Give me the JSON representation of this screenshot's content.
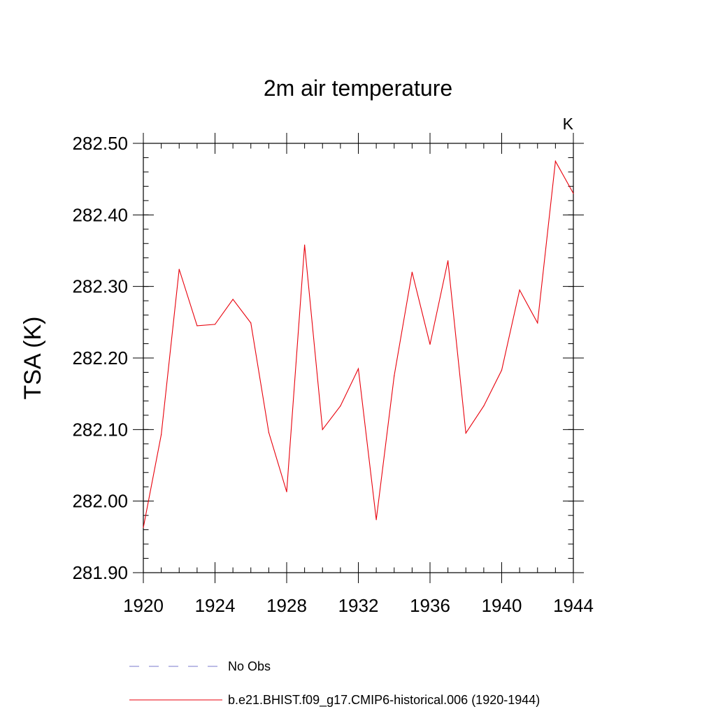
{
  "chart_data": {
    "type": "line",
    "title": "2m air temperature",
    "units_label": "K",
    "xlabel": "",
    "ylabel": "TSA  (K)",
    "xlim": [
      1920,
      1944
    ],
    "ylim": [
      281.9,
      282.5
    ],
    "x_ticks": [
      1920,
      1924,
      1928,
      1932,
      1936,
      1940,
      1944
    ],
    "x_tick_labels": [
      "1920",
      "1924",
      "1928",
      "1932",
      "1936",
      "1940",
      "1944"
    ],
    "y_ticks": [
      281.9,
      282.0,
      282.1,
      282.2,
      282.3,
      282.4,
      282.5
    ],
    "y_tick_labels": [
      "281.90",
      "282.00",
      "282.10",
      "282.20",
      "282.30",
      "282.40",
      "282.50"
    ],
    "x_minor_step": 1,
    "y_minor_step": 0.02,
    "grid": false,
    "legend_position": "bottom",
    "series": [
      {
        "name": "b.e21.BHIST.f09_g17.CMIP6-historical.006 (1920-1944)",
        "color": "#e8000b",
        "style": "solid",
        "x": [
          1920,
          1921,
          1922,
          1923,
          1924,
          1925,
          1926,
          1927,
          1928,
          1929,
          1930,
          1931,
          1932,
          1933,
          1934,
          1935,
          1936,
          1937,
          1938,
          1939,
          1940,
          1941,
          1942,
          1943,
          1944
        ],
        "values": [
          281.963,
          282.093,
          282.324,
          282.245,
          282.247,
          282.282,
          282.249,
          282.096,
          282.013,
          282.358,
          282.1,
          282.133,
          282.185,
          281.974,
          282.175,
          282.32,
          282.219,
          282.336,
          282.095,
          282.133,
          282.183,
          282.295,
          282.249,
          282.475,
          282.43
        ]
      }
    ],
    "legend": [
      {
        "label": "No Obs",
        "color": "#7777cc",
        "style": "dashed"
      },
      {
        "label": "b.e21.BHIST.f09_g17.CMIP6-historical.006 (1920-1944)",
        "color": "#e8000b",
        "style": "solid"
      }
    ]
  }
}
